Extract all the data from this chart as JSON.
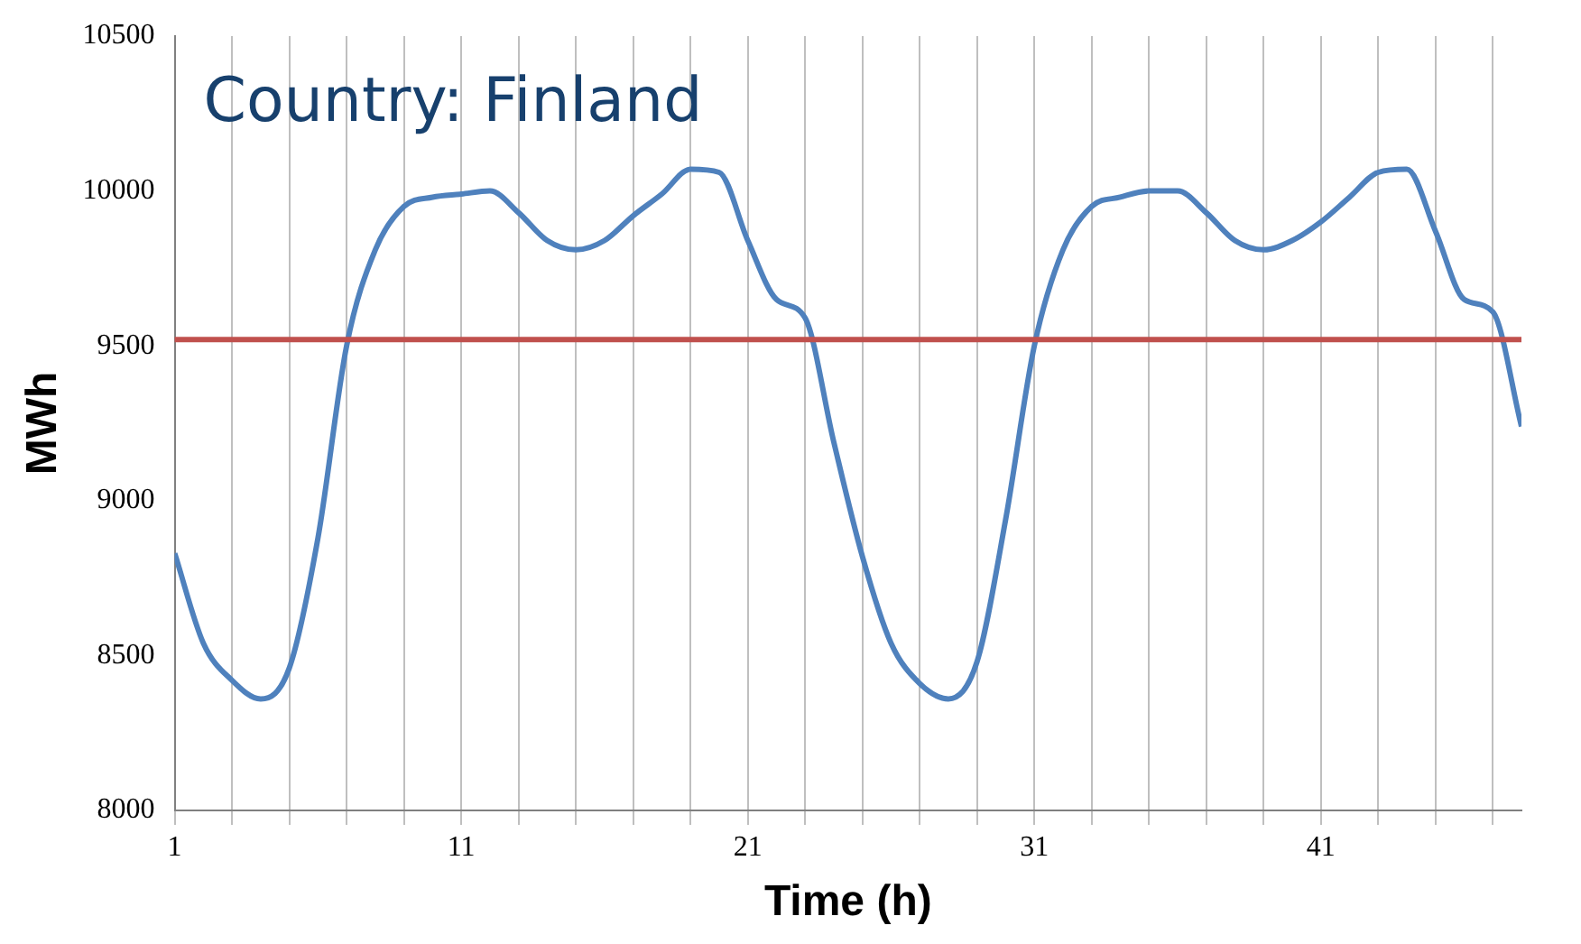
{
  "chart_data": {
    "type": "line",
    "title": "Country: Finland",
    "xlabel": "Time (h)",
    "ylabel": "MWh",
    "x": [
      1,
      2,
      3,
      4,
      5,
      6,
      7,
      8,
      9,
      10,
      11,
      12,
      13,
      14,
      15,
      16,
      17,
      18,
      19,
      20,
      21,
      22,
      23,
      24,
      25,
      26,
      27,
      28,
      29,
      30,
      31,
      32,
      33,
      34,
      35,
      36,
      37,
      38,
      39,
      40,
      41,
      42,
      43,
      44,
      45,
      46,
      47,
      48
    ],
    "series": [
      {
        "color": "#4f81bd",
        "values": [
          8830,
          8540,
          8420,
          8360,
          8460,
          8880,
          9500,
          9810,
          9950,
          9980,
          9990,
          10000,
          9930,
          9840,
          9810,
          9840,
          9920,
          9990,
          10070,
          10060,
          9840,
          9650,
          9590,
          9190,
          8820,
          8540,
          8410,
          8360,
          8480,
          8940,
          9500,
          9810,
          9950,
          9980,
          10000,
          10000,
          9930,
          9840,
          9810,
          9840,
          9900,
          9980,
          10060,
          10070,
          9870,
          9650,
          9610,
          9240
        ]
      }
    ],
    "xlim": [
      1,
      48
    ],
    "xticks": [
      1,
      {
        "value": 3,
        "label": null
      },
      {
        "value": 5,
        "label": null
      },
      {
        "value": 7,
        "label": null
      },
      {
        "value": 9,
        "label": null
      },
      11,
      {
        "value": 13,
        "label": null
      },
      {
        "value": 15,
        "label": null
      },
      {
        "value": 17,
        "label": null
      },
      {
        "value": 19,
        "label": null
      },
      21,
      {
        "value": 23,
        "label": null
      },
      {
        "value": 25,
        "label": null
      },
      {
        "value": 27,
        "label": null
      },
      {
        "value": 29,
        "label": null
      },
      31,
      {
        "value": 33,
        "label": null
      },
      {
        "value": 35,
        "label": null
      },
      {
        "value": 37,
        "label": null
      },
      {
        "value": 39,
        "label": null
      },
      41,
      {
        "value": 43,
        "label": null
      },
      {
        "value": 45,
        "label": null
      },
      {
        "value": 47,
        "label": null
      }
    ],
    "ylim": [
      8000,
      10500
    ],
    "yticks": [
      8000,
      8500,
      9000,
      9500,
      10000,
      10500
    ],
    "ref_lines": [
      {
        "axis": "y",
        "value": 9520,
        "color": "#c0504d"
      }
    ],
    "grid": "x",
    "legend": false,
    "marker": "none",
    "line_style": "solid"
  }
}
